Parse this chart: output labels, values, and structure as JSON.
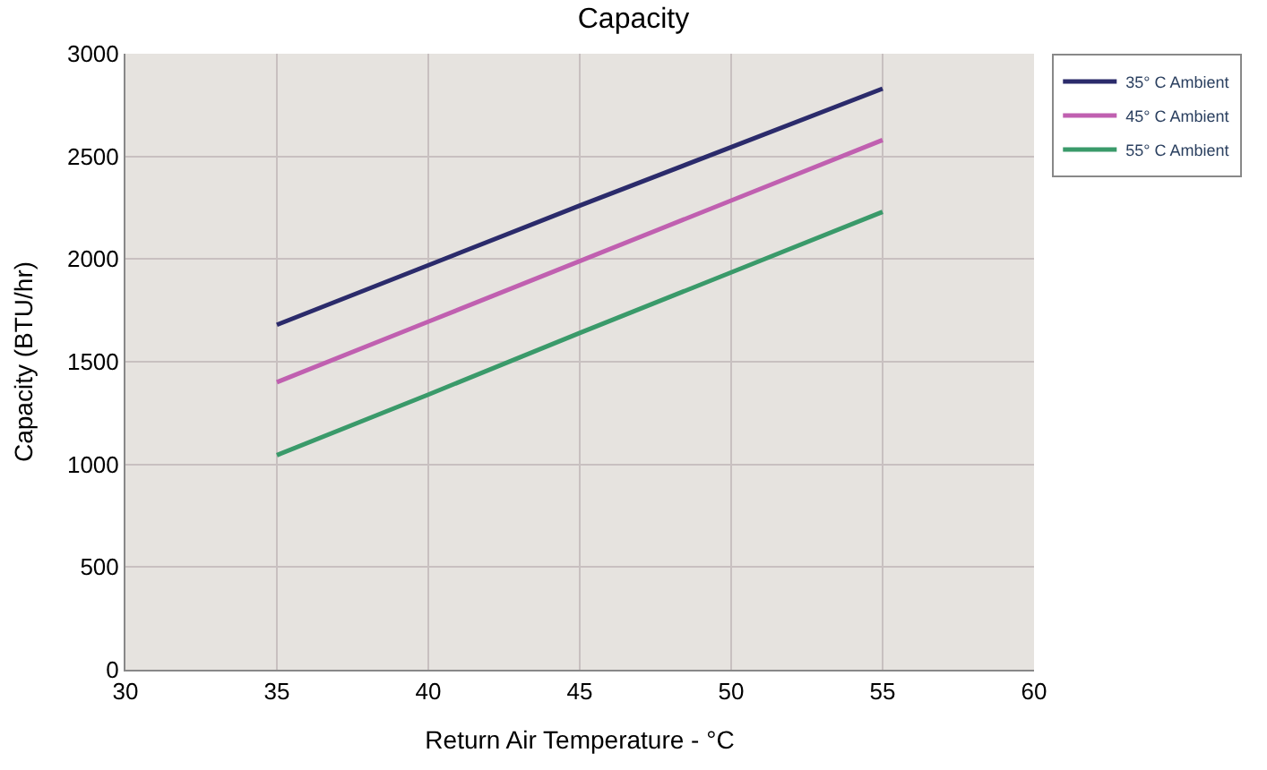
{
  "chart_data": {
    "type": "line",
    "title": "Capacity",
    "xlabel": "Return Air Temperature - °C",
    "ylabel": "Capacity (BTU/hr)",
    "x": [
      35,
      40,
      45,
      50,
      55
    ],
    "series": [
      {
        "name": "35° C Ambient",
        "color": "#2b2b6b",
        "values": [
          1680,
          1970,
          2260,
          2545,
          2830
        ]
      },
      {
        "name": "45° C Ambient",
        "color": "#c060b0",
        "values": [
          1400,
          1695,
          1990,
          2285,
          2580
        ]
      },
      {
        "name": "55° C Ambient",
        "color": "#3a9a6a",
        "values": [
          1045,
          1340,
          1640,
          1935,
          2230
        ]
      }
    ],
    "xlim": [
      30,
      60
    ],
    "xticks": [
      30,
      35,
      40,
      45,
      50,
      55,
      60
    ],
    "ylim": [
      0,
      3000
    ],
    "yticks": [
      0,
      500,
      1000,
      1500,
      2000,
      2500,
      3000
    ],
    "grid": true,
    "legend": "top right",
    "marker": "none",
    "line_style": "solid"
  }
}
